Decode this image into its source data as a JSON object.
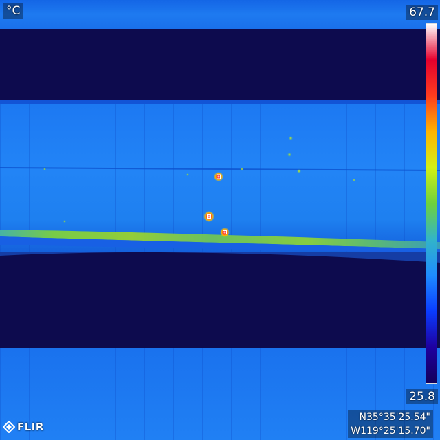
{
  "overlay": {
    "unit": "°C",
    "temp_max": "67.7",
    "temp_min": "25.8",
    "gps_lat": "N35°35'25.54\"",
    "gps_lon": "W119°25'15.70\"",
    "brand": "FLIR"
  },
  "palette": {
    "colors": [
      "#14005a",
      "#1e00a0",
      "#0a3cff",
      "#1e8cff",
      "#32b4c8",
      "#6ed23c",
      "#d2f014",
      "#ffb400",
      "#ff3c1e",
      "#e6002d",
      "#ffffff"
    ]
  },
  "scene": {
    "description_free": true,
    "hotspots": 3
  }
}
